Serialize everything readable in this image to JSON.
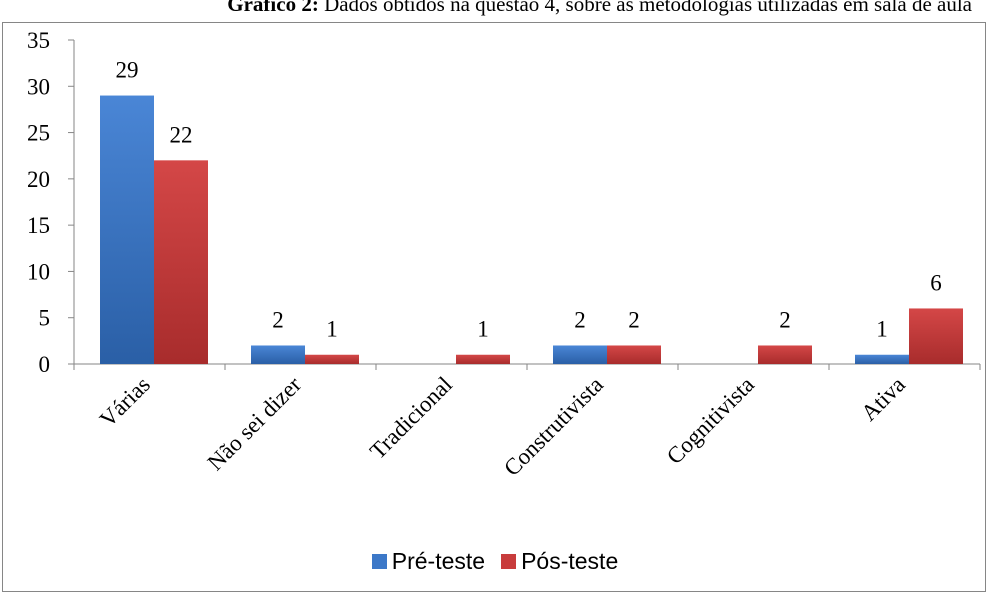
{
  "caption": {
    "bold": "Gráfico 2:",
    "text": " Dados obtidos na questão 4, sobre as metodologias utilizadas em sala de aula"
  },
  "chart_data": {
    "type": "bar",
    "categories": [
      "Várias",
      "Não sei dizer",
      "Tradicional",
      "Construtivista",
      "Cognitivista",
      "Ativa"
    ],
    "series": [
      {
        "name": "Pré-teste",
        "values": [
          29,
          2,
          0,
          2,
          0,
          1
        ],
        "labels": [
          "29",
          "2",
          "",
          "2",
          "",
          "1"
        ],
        "color": "#3c78c8"
      },
      {
        "name": "Pós-teste",
        "values": [
          22,
          1,
          1,
          2,
          2,
          6
        ],
        "labels": [
          "22",
          "1",
          "1",
          "2",
          "2",
          "6"
        ],
        "color": "#c83c3c"
      }
    ],
    "ylim": [
      0,
      35
    ],
    "yticks": [
      0,
      5,
      10,
      15,
      20,
      25,
      30,
      35
    ],
    "grid": false,
    "legend": "bottom"
  }
}
